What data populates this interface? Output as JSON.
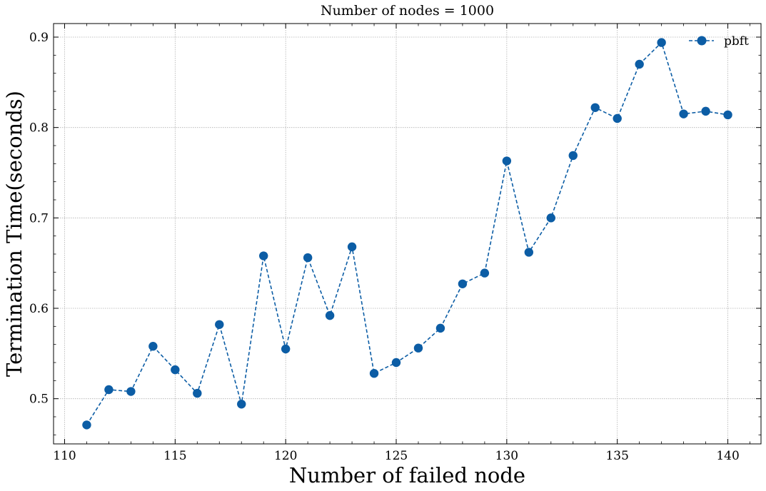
{
  "chart_data": {
    "type": "line",
    "title": "Number of nodes = 1000",
    "xlabel": "Number of failed node",
    "ylabel": "Termination Time(seconds)",
    "xlim": [
      109.5,
      141.5
    ],
    "ylim": [
      0.45,
      0.915
    ],
    "xticks": [
      110,
      115,
      120,
      125,
      130,
      135,
      140
    ],
    "xtick_labels": [
      "110",
      "115",
      "120",
      "125",
      "130",
      "135",
      "140"
    ],
    "yticks": [
      0.5,
      0.6,
      0.7,
      0.8,
      0.9
    ],
    "ytick_labels": [
      "0.5",
      "0.6",
      "0.7",
      "0.8",
      "0.9"
    ],
    "grid": true,
    "legend_position": "top-right",
    "x": [
      111,
      112,
      113,
      114,
      115,
      116,
      117,
      118,
      119,
      120,
      121,
      122,
      123,
      124,
      125,
      126,
      127,
      128,
      129,
      130,
      131,
      132,
      133,
      134,
      135,
      136,
      137,
      138,
      139,
      140
    ],
    "series": [
      {
        "name": "pbft",
        "color": "#0c5da5",
        "linestyle": "dashed",
        "marker": "circle",
        "values": [
          0.471,
          0.51,
          0.508,
          0.558,
          0.532,
          0.506,
          0.582,
          0.494,
          0.658,
          0.555,
          0.656,
          0.592,
          0.668,
          0.528,
          0.54,
          0.556,
          0.578,
          0.627,
          0.639,
          0.763,
          0.662,
          0.7,
          0.769,
          0.822,
          0.81,
          0.87,
          0.894,
          0.815,
          0.818,
          0.814
        ]
      }
    ]
  }
}
